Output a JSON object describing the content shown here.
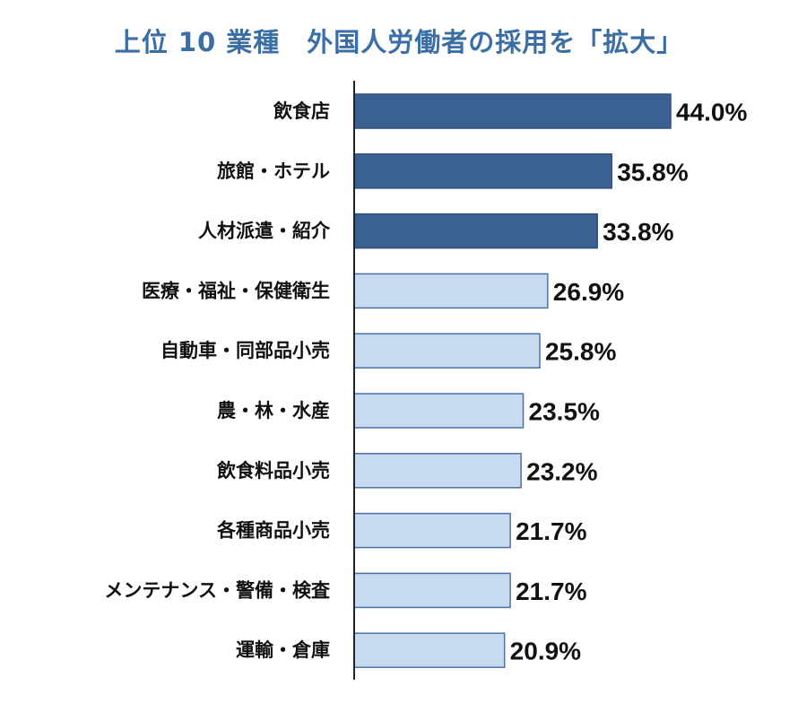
{
  "chart_data": {
    "type": "bar",
    "orientation": "horizontal",
    "title": "上位 10 業種　外国人労働者の採用を「拡大」",
    "categories": [
      "飲食店",
      "旅館・ホテル",
      "人材派遣・紹介",
      "医療・福祉・保健衛生",
      "自動車・同部品小売",
      "農・林・水産",
      "飲食料品小売",
      "各種商品小売",
      "メンテナンス・警備・検査",
      "運輸・倉庫"
    ],
    "values": [
      44.0,
      35.8,
      33.8,
      26.9,
      25.8,
      23.5,
      23.2,
      21.7,
      21.7,
      20.9
    ],
    "value_labels": [
      "44.0%",
      "35.8%",
      "33.8%",
      "26.9%",
      "25.8%",
      "23.5%",
      "23.2%",
      "21.7%",
      "21.7%",
      "20.9%"
    ],
    "highlight_top": 3,
    "xlim": [
      0,
      44
    ],
    "xlabel": "",
    "ylabel": "",
    "grid": false,
    "legend": "none"
  },
  "colors": {
    "title": "#3a6ea5",
    "bar_highlight": "#3a6192",
    "bar_highlight_stroke": "#2e4f7a",
    "bar_normal": "#c8daf0",
    "bar_normal_stroke": "#4a72a8",
    "axis": "#222222"
  }
}
